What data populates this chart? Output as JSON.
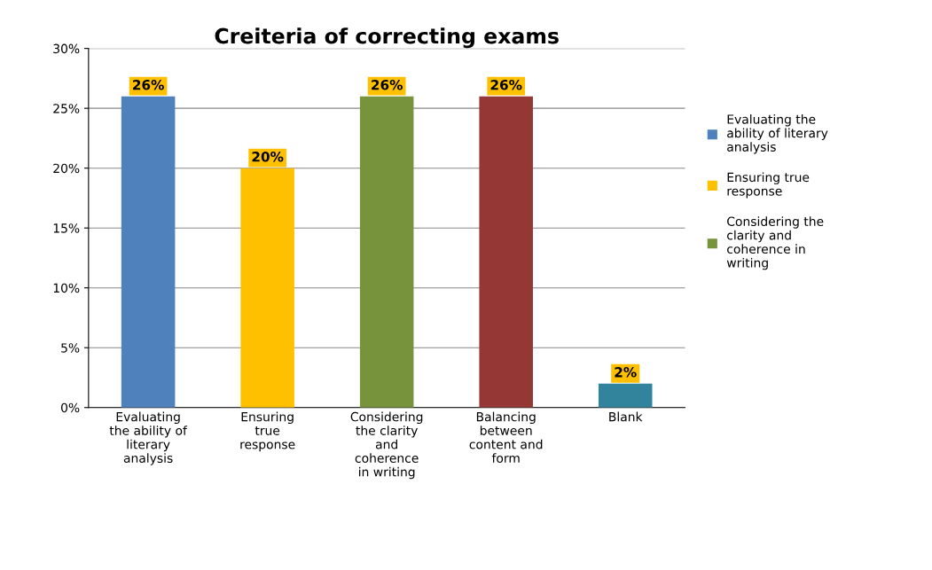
{
  "chart_data": {
    "type": "bar",
    "title": "Creiteria of correcting exams",
    "categories": [
      "Evaluating\nthe ability of\nliterary\nanalysis",
      "Ensuring\ntrue\nresponse",
      "Considering\nthe clarity\nand\ncoherence\nin writing",
      "Balancing\nbetween\ncontent and\nform",
      "Blank"
    ],
    "series": [
      {
        "name": "Evaluating the\nability of literary\nanalysis",
        "color": "#4f81bd",
        "values": [
          26,
          null,
          null,
          null,
          null
        ],
        "value_labels": [
          "26%",
          null,
          null,
          null,
          null
        ]
      },
      {
        "name": "Ensuring true\nresponse",
        "color": "#ffc000",
        "values": [
          null,
          20,
          null,
          null,
          null
        ],
        "value_labels": [
          null,
          "20%",
          null,
          null,
          null
        ]
      },
      {
        "name": "Considering the\nclarity and\ncoherence in\nwriting",
        "color": "#77933c",
        "values": [
          null,
          null,
          26,
          null,
          null
        ],
        "value_labels": [
          null,
          null,
          "26%",
          null,
          null
        ]
      },
      {
        "color": "#953735",
        "values": [
          null,
          null,
          null,
          26,
          null
        ],
        "value_labels": [
          null,
          null,
          null,
          "26%",
          null
        ]
      },
      {
        "color": "#31849b",
        "values": [
          null,
          null,
          null,
          null,
          2
        ],
        "value_labels": [
          null,
          null,
          null,
          null,
          "2%"
        ]
      }
    ],
    "ylim": [
      0,
      30
    ],
    "yticks": [
      {
        "value": 0,
        "label": "0%"
      },
      {
        "value": 5,
        "label": "5%"
      },
      {
        "value": 10,
        "label": "10%"
      },
      {
        "value": 15,
        "label": "15%"
      },
      {
        "value": 20,
        "label": "20%"
      },
      {
        "value": 25,
        "label": "25%"
      },
      {
        "value": 30,
        "label": "30%"
      }
    ],
    "grid": "y",
    "legend": "right"
  }
}
